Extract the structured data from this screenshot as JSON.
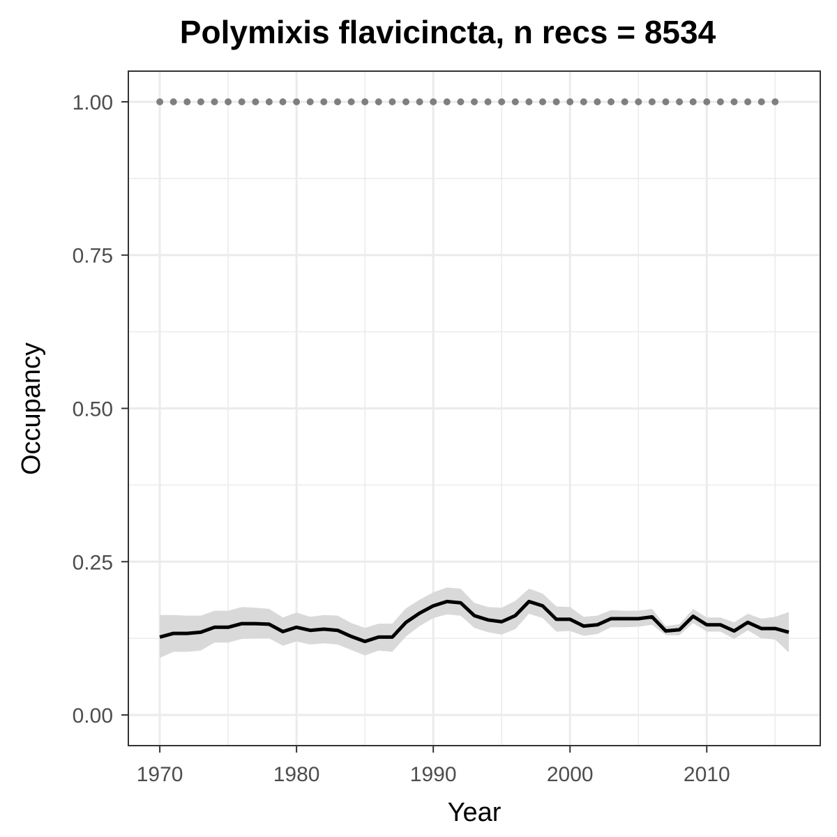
{
  "chart_data": {
    "type": "line",
    "title": "Polymixis flavicincta, n recs = 8534",
    "xlabel": "Year",
    "ylabel": "Occupancy",
    "xlim": [
      1967.7,
      2018.3
    ],
    "ylim": [
      -0.05,
      1.05
    ],
    "x_ticks": [
      1970,
      1980,
      1990,
      2000,
      2010
    ],
    "x_tick_labels": [
      "1970",
      "1980",
      "1990",
      "2000",
      "2010"
    ],
    "y_ticks": [
      0,
      0.25,
      0.5,
      0.75,
      1.0
    ],
    "y_tick_labels": [
      "0.00",
      "0.25",
      "0.50",
      "0.75",
      "1.00"
    ],
    "grid": true,
    "legend": "none",
    "colors": {
      "mean_line": "#000000",
      "ribbon": "#d9d9d9",
      "dots": "#7f7f7f",
      "grid": "#ebebeb",
      "panel_border": "#333333"
    },
    "series": [
      {
        "x": [
          1970,
          1971,
          1972,
          1973,
          1974,
          1975,
          1976,
          1977,
          1978,
          1979,
          1980,
          1981,
          1982,
          1983,
          1984,
          1985,
          1986,
          1987,
          1988,
          1989,
          1990,
          1991,
          1992,
          1993,
          1994,
          1995,
          1996,
          1997,
          1998,
          1999,
          2000,
          2001,
          2002,
          2003,
          2004,
          2005,
          2006,
          2007,
          2008,
          2009,
          2010,
          2011,
          2012,
          2013,
          2014,
          2015,
          2016
        ],
        "values": [
          0.127,
          0.133,
          0.133,
          0.135,
          0.143,
          0.143,
          0.149,
          0.149,
          0.148,
          0.136,
          0.143,
          0.138,
          0.14,
          0.138,
          0.128,
          0.12,
          0.127,
          0.127,
          0.151,
          0.166,
          0.178,
          0.185,
          0.183,
          0.162,
          0.155,
          0.152,
          0.162,
          0.185,
          0.178,
          0.156,
          0.156,
          0.145,
          0.147,
          0.157,
          0.157,
          0.157,
          0.16,
          0.137,
          0.139,
          0.161,
          0.147,
          0.147,
          0.137,
          0.151,
          0.141,
          0.141,
          0.135
        ],
        "lower": [
          0.093,
          0.103,
          0.103,
          0.105,
          0.118,
          0.118,
          0.124,
          0.125,
          0.125,
          0.113,
          0.12,
          0.115,
          0.117,
          0.115,
          0.106,
          0.097,
          0.105,
          0.103,
          0.128,
          0.145,
          0.158,
          0.164,
          0.162,
          0.142,
          0.135,
          0.131,
          0.14,
          0.165,
          0.158,
          0.136,
          0.137,
          0.129,
          0.132,
          0.143,
          0.143,
          0.144,
          0.147,
          0.13,
          0.13,
          0.15,
          0.136,
          0.136,
          0.124,
          0.138,
          0.125,
          0.123,
          0.102
        ],
        "upper": [
          0.163,
          0.163,
          0.162,
          0.162,
          0.17,
          0.17,
          0.176,
          0.175,
          0.173,
          0.159,
          0.167,
          0.16,
          0.163,
          0.162,
          0.15,
          0.142,
          0.149,
          0.149,
          0.174,
          0.188,
          0.2,
          0.208,
          0.206,
          0.183,
          0.176,
          0.175,
          0.186,
          0.206,
          0.198,
          0.177,
          0.176,
          0.16,
          0.162,
          0.171,
          0.17,
          0.17,
          0.173,
          0.145,
          0.148,
          0.173,
          0.159,
          0.159,
          0.151,
          0.165,
          0.157,
          0.16,
          0.168
        ]
      },
      {
        "x": [
          1970,
          1971,
          1972,
          1973,
          1974,
          1975,
          1976,
          1977,
          1978,
          1979,
          1980,
          1981,
          1982,
          1983,
          1984,
          1985,
          1986,
          1987,
          1988,
          1989,
          1990,
          1991,
          1992,
          1993,
          1994,
          1995,
          1996,
          1997,
          1998,
          1999,
          2000,
          2001,
          2002,
          2003,
          2004,
          2005,
          2006,
          2007,
          2008,
          2009,
          2010,
          2011,
          2012,
          2013,
          2014,
          2015
        ],
        "values": [
          1,
          1,
          1,
          1,
          1,
          1,
          1,
          1,
          1,
          1,
          1,
          1,
          1,
          1,
          1,
          1,
          1,
          1,
          1,
          1,
          1,
          1,
          1,
          1,
          1,
          1,
          1,
          1,
          1,
          1,
          1,
          1,
          1,
          1,
          1,
          1,
          1,
          1,
          1,
          1,
          1,
          1,
          1,
          1,
          1,
          1
        ]
      }
    ]
  }
}
